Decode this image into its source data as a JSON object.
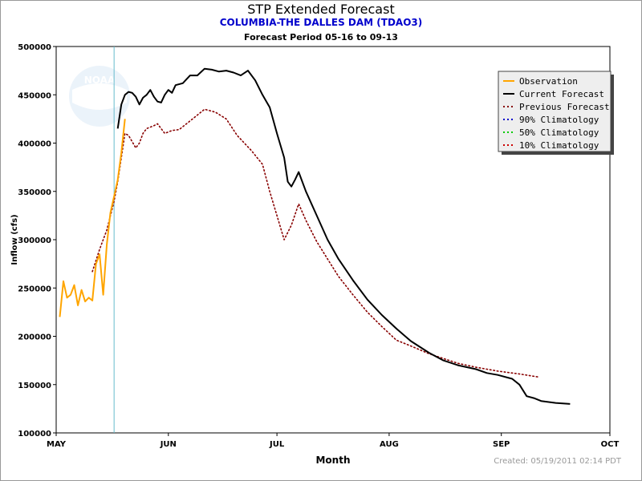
{
  "chart_data": {
    "type": "line",
    "title": "STP Extended Forecast",
    "subtitle": "COLUMBIA-THE DALLES DAM (TDAO3)",
    "period": "Forecast Period 05-16 to 09-13",
    "xlabel": "Month",
    "ylabel": "Inflow (cfs)",
    "credit": "Created: 05/19/2011 02:14 PDT",
    "logo_text": "NOAA",
    "x_axis": {
      "type": "date",
      "range": [
        "2011-05-01",
        "2011-10-01"
      ],
      "ticks": [
        "MAY",
        "JUN",
        "JUL",
        "AUG",
        "SEP",
        "OCT"
      ],
      "tick_dates": [
        "2011-05-01",
        "2011-06-01",
        "2011-07-01",
        "2011-08-01",
        "2011-09-01",
        "2011-10-01"
      ]
    },
    "y_axis": {
      "range": [
        100000,
        500000
      ],
      "ticks": [
        100000,
        150000,
        200000,
        250000,
        300000,
        350000,
        400000,
        450000,
        500000
      ]
    },
    "grid": false,
    "legend_position": "top-right",
    "current_date": "2011-05-17",
    "series": [
      {
        "name": "Observation",
        "color": "#ffa500",
        "style": "solid",
        "points": [
          [
            "2011-05-02",
            220000
          ],
          [
            "2011-05-03",
            257000
          ],
          [
            "2011-05-04",
            240000
          ],
          [
            "2011-05-05",
            243000
          ],
          [
            "2011-05-06",
            253000
          ],
          [
            "2011-05-07",
            232000
          ],
          [
            "2011-05-08",
            248000
          ],
          [
            "2011-05-09",
            236000
          ],
          [
            "2011-05-10",
            240000
          ],
          [
            "2011-05-11",
            237000
          ],
          [
            "2011-05-12",
            275000
          ],
          [
            "2011-05-13",
            285000
          ],
          [
            "2011-05-14",
            243000
          ],
          [
            "2011-05-15",
            295000
          ],
          [
            "2011-05-16",
            328000
          ],
          [
            "2011-05-17",
            345000
          ],
          [
            "2011-05-18",
            362000
          ],
          [
            "2011-05-19",
            390000
          ],
          [
            "2011-05-20",
            425000
          ]
        ]
      },
      {
        "name": "Current Forecast",
        "color": "#000000",
        "style": "solid",
        "points": [
          [
            "2011-05-18",
            415000
          ],
          [
            "2011-05-19",
            440000
          ],
          [
            "2011-05-20",
            450000
          ],
          [
            "2011-05-21",
            453000
          ],
          [
            "2011-05-22",
            452000
          ],
          [
            "2011-05-23",
            448000
          ],
          [
            "2011-05-24",
            440000
          ],
          [
            "2011-05-25",
            447000
          ],
          [
            "2011-05-26",
            450000
          ],
          [
            "2011-05-27",
            455000
          ],
          [
            "2011-05-28",
            448000
          ],
          [
            "2011-05-29",
            443000
          ],
          [
            "2011-05-30",
            442000
          ],
          [
            "2011-05-31",
            450000
          ],
          [
            "2011-06-01",
            455000
          ],
          [
            "2011-06-02",
            452000
          ],
          [
            "2011-06-03",
            460000
          ],
          [
            "2011-06-05",
            462000
          ],
          [
            "2011-06-07",
            470000
          ],
          [
            "2011-06-09",
            470000
          ],
          [
            "2011-06-11",
            477000
          ],
          [
            "2011-06-13",
            476000
          ],
          [
            "2011-06-15",
            474000
          ],
          [
            "2011-06-17",
            475000
          ],
          [
            "2011-06-19",
            473000
          ],
          [
            "2011-06-21",
            470000
          ],
          [
            "2011-06-23",
            475000
          ],
          [
            "2011-06-25",
            465000
          ],
          [
            "2011-06-27",
            450000
          ],
          [
            "2011-06-29",
            437000
          ],
          [
            "2011-07-01",
            410000
          ],
          [
            "2011-07-03",
            385000
          ],
          [
            "2011-07-04",
            360000
          ],
          [
            "2011-07-05",
            355000
          ],
          [
            "2011-07-06",
            362000
          ],
          [
            "2011-07-07",
            370000
          ],
          [
            "2011-07-09",
            350000
          ],
          [
            "2011-07-12",
            325000
          ],
          [
            "2011-07-15",
            300000
          ],
          [
            "2011-07-18",
            280000
          ],
          [
            "2011-07-22",
            258000
          ],
          [
            "2011-07-26",
            238000
          ],
          [
            "2011-07-30",
            222000
          ],
          [
            "2011-08-03",
            208000
          ],
          [
            "2011-08-07",
            195000
          ],
          [
            "2011-08-12",
            183000
          ],
          [
            "2011-08-16",
            175000
          ],
          [
            "2011-08-20",
            170000
          ],
          [
            "2011-08-25",
            166000
          ],
          [
            "2011-08-28",
            162000
          ],
          [
            "2011-08-31",
            160000
          ],
          [
            "2011-09-04",
            156000
          ],
          [
            "2011-09-06",
            150000
          ],
          [
            "2011-09-08",
            138000
          ],
          [
            "2011-09-10",
            136000
          ],
          [
            "2011-09-12",
            133000
          ],
          [
            "2011-09-16",
            131000
          ],
          [
            "2011-09-20",
            130000
          ]
        ]
      },
      {
        "name": "Previous Forecast",
        "color": "#880000",
        "style": "dotted",
        "points": [
          [
            "2011-05-11",
            267000
          ],
          [
            "2011-05-13",
            290000
          ],
          [
            "2011-05-15",
            310000
          ],
          [
            "2011-05-17",
            340000
          ],
          [
            "2011-05-18",
            360000
          ],
          [
            "2011-05-19",
            385000
          ],
          [
            "2011-05-20",
            410000
          ],
          [
            "2011-05-21",
            408000
          ],
          [
            "2011-05-23",
            395000
          ],
          [
            "2011-05-24",
            400000
          ],
          [
            "2011-05-25",
            410000
          ],
          [
            "2011-05-26",
            415000
          ],
          [
            "2011-05-28",
            418000
          ],
          [
            "2011-05-29",
            420000
          ],
          [
            "2011-05-30",
            415000
          ],
          [
            "2011-05-31",
            410000
          ],
          [
            "2011-06-02",
            413000
          ],
          [
            "2011-06-04",
            414000
          ],
          [
            "2011-06-06",
            420000
          ],
          [
            "2011-06-08",
            426000
          ],
          [
            "2011-06-11",
            435000
          ],
          [
            "2011-06-14",
            432000
          ],
          [
            "2011-06-17",
            425000
          ],
          [
            "2011-06-20",
            408000
          ],
          [
            "2011-06-24",
            392000
          ],
          [
            "2011-06-27",
            378000
          ],
          [
            "2011-06-29",
            350000
          ],
          [
            "2011-07-01",
            325000
          ],
          [
            "2011-07-03",
            300000
          ],
          [
            "2011-07-05",
            315000
          ],
          [
            "2011-07-07",
            337000
          ],
          [
            "2011-07-09",
            320000
          ],
          [
            "2011-07-12",
            298000
          ],
          [
            "2011-07-15",
            280000
          ],
          [
            "2011-07-18",
            262000
          ],
          [
            "2011-07-22",
            243000
          ],
          [
            "2011-07-26",
            225000
          ],
          [
            "2011-07-30",
            210000
          ],
          [
            "2011-08-03",
            196000
          ],
          [
            "2011-08-07",
            190000
          ],
          [
            "2011-08-12",
            182000
          ],
          [
            "2011-08-16",
            177000
          ],
          [
            "2011-08-20",
            172000
          ],
          [
            "2011-08-25",
            168000
          ],
          [
            "2011-08-31",
            164000
          ],
          [
            "2011-09-06",
            161000
          ],
          [
            "2011-09-11",
            158000
          ]
        ]
      },
      {
        "name": "90% Climatology",
        "color": "#0000cc",
        "style": "dotted",
        "points": []
      },
      {
        "name": "50% Climatology",
        "color": "#00cc00",
        "style": "dotted",
        "points": []
      },
      {
        "name": "10% Climatology",
        "color": "#cc0000",
        "style": "dotted",
        "points": []
      }
    ]
  }
}
